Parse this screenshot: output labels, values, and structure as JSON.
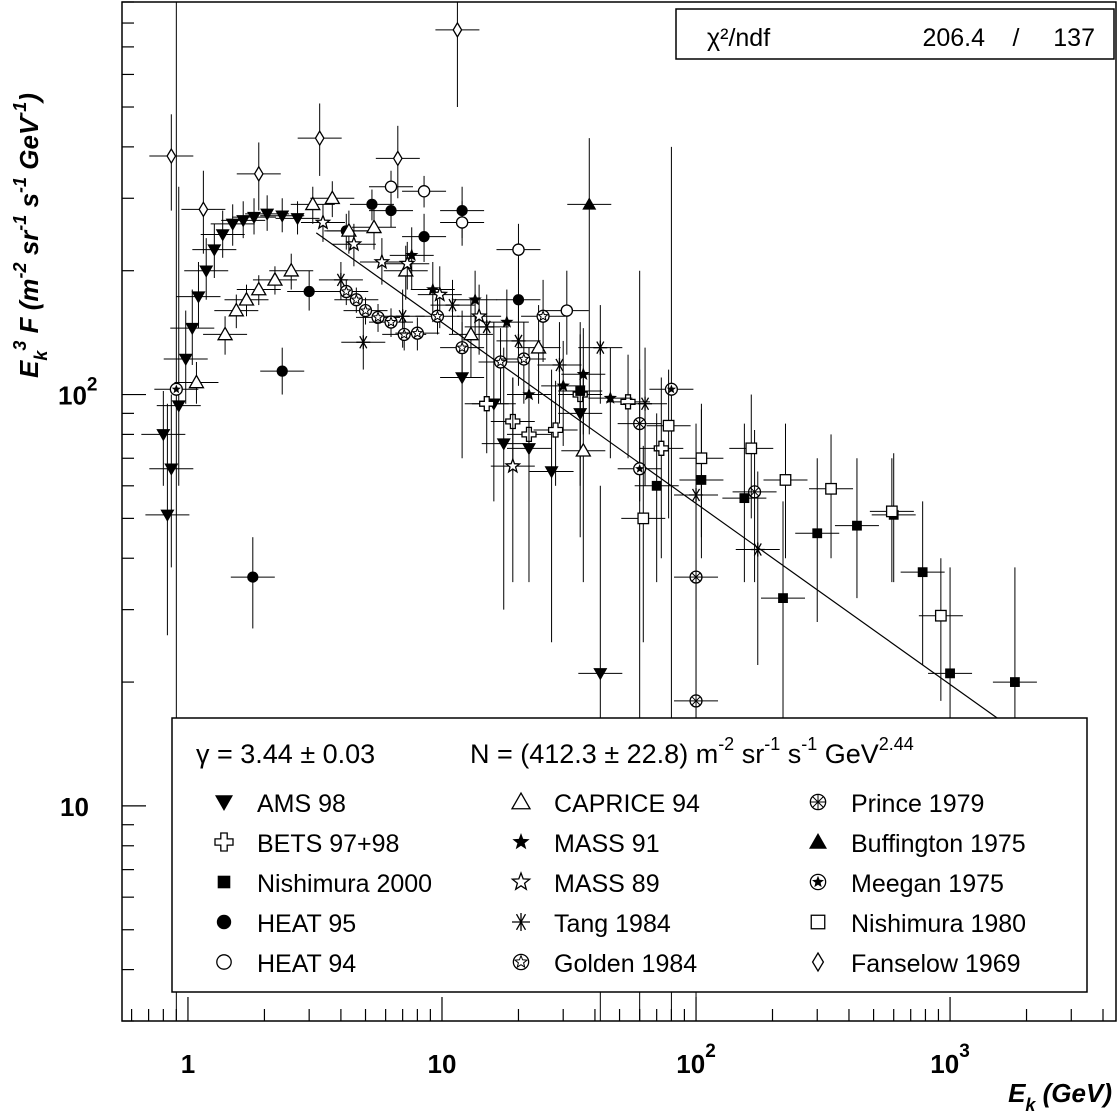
{
  "chart_data": {
    "type": "scatter",
    "title": "",
    "xlabel": "E_k (GeV)",
    "ylabel": "E_k^3 F (m^-2 sr^-1 s^-1 GeV^-1)",
    "xscale": "log",
    "yscale": "log",
    "xlim": [
      0.55,
      4500
    ],
    "ylim": [
      3,
      900
    ],
    "x_tick_labels": [
      {
        "value": 1,
        "base": "1",
        "exp": ""
      },
      {
        "value": 10,
        "base": "10",
        "exp": ""
      },
      {
        "value": 100,
        "base": "10",
        "exp": "2"
      },
      {
        "value": 1000,
        "base": "10",
        "exp": "3"
      }
    ],
    "y_tick_labels": [
      {
        "value": 10,
        "base": "10",
        "exp": ""
      },
      {
        "value": 100,
        "base": "10",
        "exp": "2"
      }
    ],
    "stats": {
      "label": "χ²/ndf",
      "chi2": "206.4",
      "sep": "/",
      "ndf": "137"
    },
    "fit": {
      "gamma_text": "γ = 3.44 ± 0.03",
      "norm_text": "N = (412.3 ± 22.8) m",
      "units": [
        {
          "text": "-2",
          "sup": true
        },
        {
          "text": " sr",
          "sup": false
        },
        {
          "text": "-1",
          "sup": true
        },
        {
          "text": " s",
          "sup": false
        },
        {
          "text": "-1",
          "sup": true
        },
        {
          "text": " GeV",
          "sup": false
        },
        {
          "text": "2.44",
          "sup": true
        }
      ],
      "gamma": 3.44,
      "N": 412.3,
      "x_range": [
        3.2,
        1800
      ]
    },
    "series": [
      {
        "name": "AMS 98",
        "marker": "triangle-down",
        "points": [
          {
            "x": 0.8,
            "y": 80,
            "ylo": 60,
            "yhi": 102
          },
          {
            "x": 0.83,
            "y": 51,
            "ylo": 26,
            "yhi": 95
          },
          {
            "x": 0.86,
            "y": 66,
            "ylo": 38,
            "yhi": 100
          },
          {
            "x": 0.92,
            "y": 94,
            "ylo": 60,
            "yhi": 320
          },
          {
            "x": 0.98,
            "y": 122,
            "ylo": 95,
            "yhi": 160
          },
          {
            "x": 1.04,
            "y": 145,
            "ylo": 118,
            "yhi": 180
          },
          {
            "x": 1.1,
            "y": 173,
            "ylo": 145,
            "yhi": 210
          },
          {
            "x": 1.18,
            "y": 200,
            "ylo": 170,
            "yhi": 240
          },
          {
            "x": 1.27,
            "y": 225,
            "ylo": 192,
            "yhi": 260
          },
          {
            "x": 1.37,
            "y": 245,
            "ylo": 215,
            "yhi": 280
          },
          {
            "x": 1.5,
            "y": 260,
            "ylo": 230,
            "yhi": 290
          },
          {
            "x": 1.65,
            "y": 265,
            "ylo": 240,
            "yhi": 295
          },
          {
            "x": 1.82,
            "y": 270,
            "ylo": 245,
            "yhi": 300
          },
          {
            "x": 2.05,
            "y": 275,
            "ylo": 250,
            "yhi": 305
          },
          {
            "x": 2.35,
            "y": 272,
            "ylo": 248,
            "yhi": 300
          },
          {
            "x": 2.7,
            "y": 268,
            "ylo": 245,
            "yhi": 295
          },
          {
            "x": 12,
            "y": 110,
            "ylo": 70,
            "yhi": 160
          },
          {
            "x": 16,
            "y": 95,
            "ylo": 55,
            "yhi": 150
          },
          {
            "x": 17.5,
            "y": 76,
            "ylo": 30,
            "yhi": 130
          },
          {
            "x": 22,
            "y": 74,
            "ylo": 35,
            "yhi": 120
          },
          {
            "x": 27,
            "y": 65,
            "ylo": 25,
            "yhi": 115
          },
          {
            "x": 35,
            "y": 90,
            "ylo": 45,
            "yhi": 140
          },
          {
            "x": 42,
            "y": 21,
            "ylo": 3,
            "yhi": 60
          }
        ]
      },
      {
        "name": "BETS 97+98",
        "marker": "cross-open",
        "points": [
          {
            "x": 15,
            "y": 95,
            "ylo": 72,
            "yhi": 120
          },
          {
            "x": 19,
            "y": 86,
            "ylo": 65,
            "yhi": 110
          },
          {
            "x": 22,
            "y": 80,
            "ylo": 55,
            "yhi": 105
          },
          {
            "x": 28,
            "y": 82,
            "ylo": 60,
            "yhi": 108
          },
          {
            "x": 35,
            "y": 100,
            "ylo": 70,
            "yhi": 130
          },
          {
            "x": 54,
            "y": 96,
            "ylo": 70,
            "yhi": 125
          },
          {
            "x": 73,
            "y": 74,
            "ylo": 40,
            "yhi": 110
          }
        ]
      },
      {
        "name": "Nishimura 2000",
        "marker": "square-filled",
        "points": [
          {
            "x": 35,
            "y": 102,
            "ylo": 60,
            "yhi": 150
          },
          {
            "x": 70,
            "y": 60,
            "ylo": 35,
            "yhi": 90
          },
          {
            "x": 105,
            "y": 62,
            "ylo": 40,
            "yhi": 92
          },
          {
            "x": 155,
            "y": 56,
            "ylo": 35,
            "yhi": 85
          },
          {
            "x": 220,
            "y": 32,
            "ylo": 15,
            "yhi": 55
          },
          {
            "x": 300,
            "y": 46,
            "ylo": 28,
            "yhi": 70
          },
          {
            "x": 430,
            "y": 48,
            "ylo": 32,
            "yhi": 70
          },
          {
            "x": 600,
            "y": 51,
            "ylo": 35,
            "yhi": 72
          },
          {
            "x": 780,
            "y": 37,
            "ylo": 22,
            "yhi": 55
          },
          {
            "x": 1000,
            "y": 21,
            "ylo": 10,
            "yhi": 38
          },
          {
            "x": 1800,
            "y": 20,
            "ylo": 8,
            "yhi": 38
          }
        ]
      },
      {
        "name": "HEAT 95",
        "marker": "circle-filled",
        "points": [
          {
            "x": 1.8,
            "y": 36,
            "ylo": 27,
            "yhi": 45
          },
          {
            "x": 2.35,
            "y": 114,
            "ylo": 100,
            "yhi": 130
          },
          {
            "x": 3,
            "y": 178,
            "ylo": 160,
            "yhi": 200
          },
          {
            "x": 4.2,
            "y": 250,
            "ylo": 225,
            "yhi": 275
          },
          {
            "x": 5.3,
            "y": 290,
            "ylo": 265,
            "yhi": 315
          },
          {
            "x": 6.3,
            "y": 280,
            "ylo": 255,
            "yhi": 305
          },
          {
            "x": 8.5,
            "y": 242,
            "ylo": 210,
            "yhi": 275
          },
          {
            "x": 12,
            "y": 280,
            "ylo": 240,
            "yhi": 320
          },
          {
            "x": 20,
            "y": 170,
            "ylo": 130,
            "yhi": 215
          }
        ]
      },
      {
        "name": "HEAT 94",
        "marker": "circle-open",
        "points": [
          {
            "x": 6.3,
            "y": 320,
            "ylo": 290,
            "yhi": 350
          },
          {
            "x": 8.5,
            "y": 312,
            "ylo": 285,
            "yhi": 340
          },
          {
            "x": 12,
            "y": 262,
            "ylo": 230,
            "yhi": 295
          },
          {
            "x": 20,
            "y": 225,
            "ylo": 190,
            "yhi": 260
          },
          {
            "x": 31,
            "y": 160,
            "ylo": 125,
            "yhi": 200
          }
        ]
      },
      {
        "name": "CAPRICE 94",
        "marker": "triangle-up-open",
        "points": [
          {
            "x": 1.08,
            "y": 107,
            "ylo": 95,
            "yhi": 120
          },
          {
            "x": 1.4,
            "y": 140,
            "ylo": 125,
            "yhi": 155
          },
          {
            "x": 1.55,
            "y": 160,
            "ylo": 145,
            "yhi": 175
          },
          {
            "x": 1.7,
            "y": 170,
            "ylo": 155,
            "yhi": 185
          },
          {
            "x": 1.9,
            "y": 180,
            "ylo": 165,
            "yhi": 195
          },
          {
            "x": 2.2,
            "y": 190,
            "ylo": 175,
            "yhi": 205
          },
          {
            "x": 2.55,
            "y": 200,
            "ylo": 180,
            "yhi": 220
          },
          {
            "x": 3.1,
            "y": 290,
            "ylo": 260,
            "yhi": 320
          },
          {
            "x": 3.7,
            "y": 300,
            "ylo": 270,
            "yhi": 330
          },
          {
            "x": 4.3,
            "y": 250,
            "ylo": 220,
            "yhi": 280
          },
          {
            "x": 5.4,
            "y": 255,
            "ylo": 225,
            "yhi": 285
          },
          {
            "x": 7.2,
            "y": 200,
            "ylo": 170,
            "yhi": 230
          },
          {
            "x": 13,
            "y": 140,
            "ylo": 110,
            "yhi": 170
          },
          {
            "x": 24,
            "y": 130,
            "ylo": 95,
            "yhi": 165
          },
          {
            "x": 36,
            "y": 73,
            "ylo": 35,
            "yhi": 110
          }
        ]
      },
      {
        "name": "MASS 91",
        "marker": "star-filled",
        "points": [
          {
            "x": 7.6,
            "y": 218,
            "ylo": 180,
            "yhi": 255
          },
          {
            "x": 9.2,
            "y": 180,
            "ylo": 150,
            "yhi": 210
          },
          {
            "x": 13.5,
            "y": 170,
            "ylo": 140,
            "yhi": 200
          },
          {
            "x": 18,
            "y": 150,
            "ylo": 120,
            "yhi": 180
          },
          {
            "x": 22,
            "y": 100,
            "ylo": 70,
            "yhi": 130
          },
          {
            "x": 30,
            "y": 105,
            "ylo": 75,
            "yhi": 135
          },
          {
            "x": 36,
            "y": 112,
            "ylo": 80,
            "yhi": 145
          },
          {
            "x": 46,
            "y": 98,
            "ylo": 70,
            "yhi": 130
          }
        ]
      },
      {
        "name": "MASS 89",
        "marker": "star-open",
        "points": [
          {
            "x": 3.4,
            "y": 262,
            "ylo": 235,
            "yhi": 290
          },
          {
            "x": 4.5,
            "y": 232,
            "ylo": 205,
            "yhi": 260
          },
          {
            "x": 5.8,
            "y": 210,
            "ylo": 185,
            "yhi": 240
          },
          {
            "x": 7.3,
            "y": 208,
            "ylo": 180,
            "yhi": 235
          },
          {
            "x": 9.8,
            "y": 175,
            "ylo": 145,
            "yhi": 205
          },
          {
            "x": 14,
            "y": 155,
            "ylo": 125,
            "yhi": 185
          },
          {
            "x": 19,
            "y": 67,
            "ylo": 35,
            "yhi": 110
          }
        ]
      },
      {
        "name": "Tang 1984",
        "marker": "asterisk",
        "points": [
          {
            "x": 4,
            "y": 190,
            "ylo": 170,
            "yhi": 210
          },
          {
            "x": 4.9,
            "y": 134,
            "ylo": 115,
            "yhi": 155
          },
          {
            "x": 7,
            "y": 155,
            "ylo": 130,
            "yhi": 180
          },
          {
            "x": 11,
            "y": 165,
            "ylo": 140,
            "yhi": 190
          },
          {
            "x": 15,
            "y": 146,
            "ylo": 120,
            "yhi": 175
          },
          {
            "x": 20,
            "y": 135,
            "ylo": 105,
            "yhi": 165
          },
          {
            "x": 29,
            "y": 118,
            "ylo": 85,
            "yhi": 150
          },
          {
            "x": 42,
            "y": 130,
            "ylo": 95,
            "yhi": 165
          },
          {
            "x": 63,
            "y": 95,
            "ylo": 60,
            "yhi": 130
          },
          {
            "x": 100,
            "y": 57,
            "ylo": 30,
            "yhi": 85
          },
          {
            "x": 175,
            "y": 42,
            "ylo": 22,
            "yhi": 65
          }
        ]
      },
      {
        "name": "Golden 1984",
        "marker": "circle-star",
        "points": [
          {
            "x": 4.2,
            "y": 178,
            "ylo": 165,
            "yhi": 190
          },
          {
            "x": 4.6,
            "y": 170,
            "ylo": 158,
            "yhi": 182
          },
          {
            "x": 5,
            "y": 160,
            "ylo": 148,
            "yhi": 172
          },
          {
            "x": 5.6,
            "y": 154,
            "ylo": 142,
            "yhi": 166
          },
          {
            "x": 6.3,
            "y": 150,
            "ylo": 138,
            "yhi": 162
          },
          {
            "x": 7.1,
            "y": 140,
            "ylo": 128,
            "yhi": 152
          },
          {
            "x": 8,
            "y": 141,
            "ylo": 128,
            "yhi": 154
          },
          {
            "x": 9.6,
            "y": 155,
            "ylo": 140,
            "yhi": 170
          },
          {
            "x": 12,
            "y": 130,
            "ylo": 110,
            "yhi": 150
          },
          {
            "x": 17,
            "y": 120,
            "ylo": 95,
            "yhi": 145
          },
          {
            "x": 21,
            "y": 122,
            "ylo": 95,
            "yhi": 150
          },
          {
            "x": 25,
            "y": 155,
            "ylo": 120,
            "yhi": 190
          }
        ]
      },
      {
        "name": "Prince 1979",
        "marker": "circle-x",
        "points": [
          {
            "x": 60,
            "y": 85,
            "ylo": 55,
            "yhi": 115
          },
          {
            "x": 100,
            "y": 36,
            "ylo": 15,
            "yhi": 60
          },
          {
            "x": 100,
            "y": 18,
            "ylo": 3,
            "yhi": 40
          },
          {
            "x": 170,
            "y": 58,
            "ylo": 35,
            "yhi": 82
          }
        ]
      },
      {
        "name": "Buffington 1975",
        "marker": "triangle-up-filled",
        "points": [
          {
            "x": 38,
            "y": 290,
            "ylo": 80,
            "yhi": 420
          }
        ]
      },
      {
        "name": "Meegan 1975",
        "marker": "circle-star-filled",
        "points": [
          {
            "x": 0.9,
            "y": 103,
            "ylo": 3,
            "yhi": 900
          },
          {
            "x": 60,
            "y": 66,
            "ylo": 3,
            "yhi": 200
          },
          {
            "x": 80,
            "y": 103,
            "ylo": 3,
            "yhi": 400
          }
        ]
      },
      {
        "name": "Nishimura 1980",
        "marker": "square-open",
        "points": [
          {
            "x": 62,
            "y": 50,
            "ylo": 25,
            "yhi": 75
          },
          {
            "x": 78,
            "y": 84,
            "ylo": 50,
            "yhi": 115
          },
          {
            "x": 105,
            "y": 70,
            "ylo": 45,
            "yhi": 95
          },
          {
            "x": 165,
            "y": 74,
            "ylo": 50,
            "yhi": 100
          },
          {
            "x": 225,
            "y": 62,
            "ylo": 40,
            "yhi": 85
          },
          {
            "x": 340,
            "y": 59,
            "ylo": 40,
            "yhi": 80
          },
          {
            "x": 590,
            "y": 52,
            "ylo": 35,
            "yhi": 70
          },
          {
            "x": 920,
            "y": 29,
            "ylo": 18,
            "yhi": 40
          }
        ]
      },
      {
        "name": "Fanselow 1969",
        "marker": "diamond-open",
        "points": [
          {
            "x": 0.86,
            "y": 380,
            "ylo": 280,
            "yhi": 480
          },
          {
            "x": 1.15,
            "y": 282,
            "ylo": 220,
            "yhi": 350
          },
          {
            "x": 1.9,
            "y": 344,
            "ylo": 280,
            "yhi": 410
          },
          {
            "x": 3.3,
            "y": 420,
            "ylo": 340,
            "yhi": 510
          },
          {
            "x": 6.7,
            "y": 375,
            "ylo": 300,
            "yhi": 450
          },
          {
            "x": 11.5,
            "y": 770,
            "ylo": 500,
            "yhi": 1000
          }
        ]
      }
    ]
  }
}
